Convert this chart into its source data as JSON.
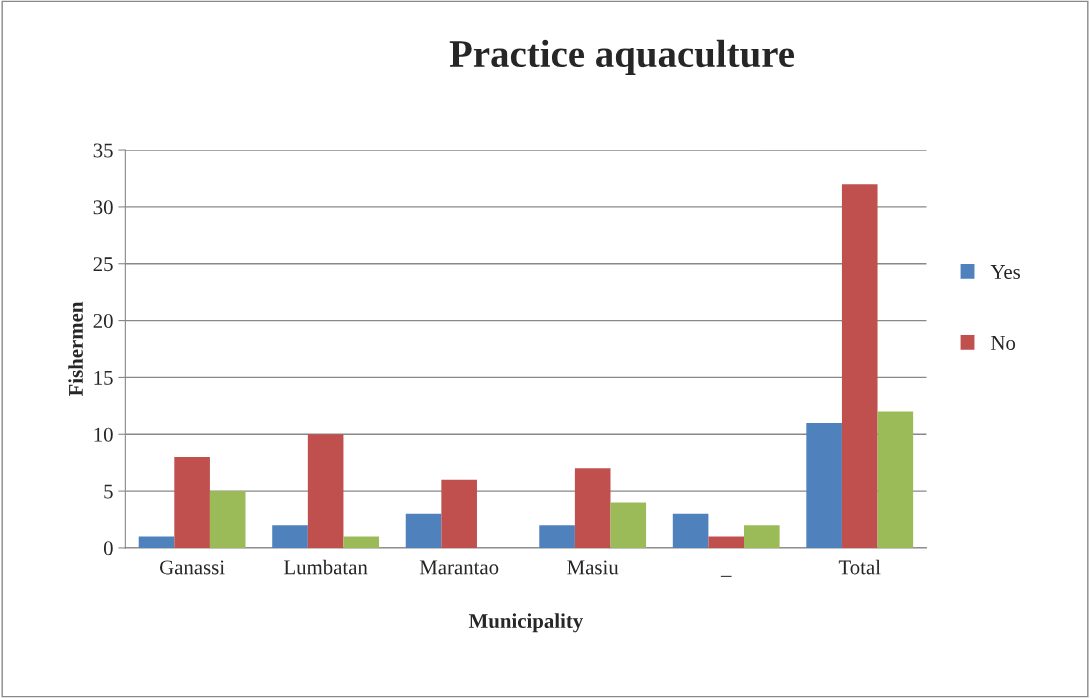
{
  "chart_data": {
    "type": "bar",
    "title": "Practice aquaculture",
    "xlabel": "Municipality",
    "ylabel": "Fishermen",
    "categories": [
      "Ganassi",
      "Lumbatan",
      "Marantao",
      "Masiu",
      "_",
      "Total"
    ],
    "series": [
      {
        "name": "Yes",
        "color": "#4f81bd",
        "values": [
          1,
          2,
          3,
          2,
          3,
          11
        ]
      },
      {
        "name": "No",
        "color": "#c0504d",
        "values": [
          8,
          10,
          6,
          7,
          1,
          32
        ]
      },
      {
        "color": "#9bbb59",
        "values": [
          5,
          1,
          null,
          4,
          2,
          12
        ]
      }
    ],
    "ylim": [
      0,
      35
    ],
    "yticks": [
      0,
      5,
      10,
      15,
      20,
      25,
      30,
      35
    ],
    "grid": "y",
    "legend": "right"
  }
}
